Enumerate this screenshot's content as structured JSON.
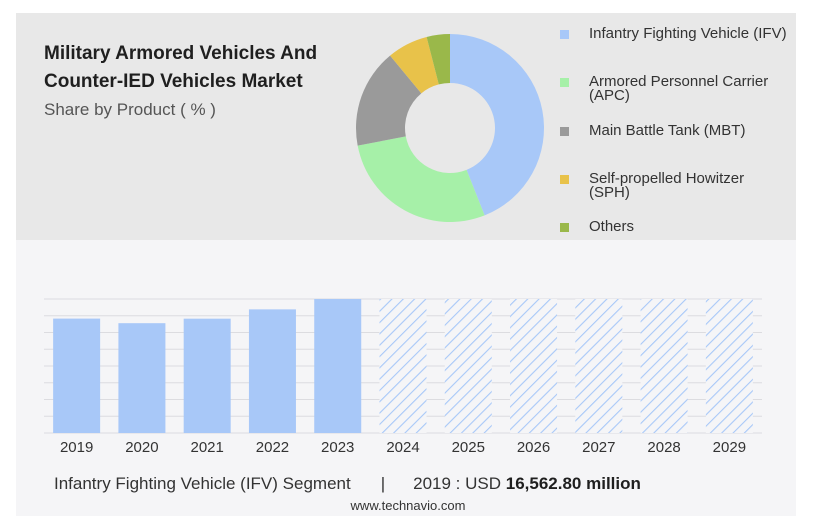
{
  "header": {
    "title": "Military Armored Vehicles And Counter-IED Vehicles Market",
    "subtitle": "Share by Product ( % )"
  },
  "chart_data": [
    {
      "type": "pie",
      "subtype": "donut",
      "title": "Military Armored Vehicles And Counter-IED Vehicles Market",
      "subtitle": "Share by Product ( % )",
      "legend_placement": "right",
      "slices": [
        {
          "label": "Infantry Fighting Vehicle (IFV)",
          "value": 44,
          "color": "#a8c8f8"
        },
        {
          "label": "Armored Personnel Carrier (APC)",
          "value": 28,
          "color": "#a6f0a8"
        },
        {
          "label": "Main Battle Tank (MBT)",
          "value": 17,
          "color": "#9a9a9a"
        },
        {
          "label": "Self-propelled Howitzer (SPH)",
          "value": 7,
          "color": "#e8c24a"
        },
        {
          "label": "Others",
          "value": 4,
          "color": "#9ab84a"
        }
      ]
    },
    {
      "type": "bar",
      "categories": [
        "2019",
        "2020",
        "2021",
        "2022",
        "2023",
        "2024",
        "2025",
        "2026",
        "2027",
        "2028",
        "2029"
      ],
      "values": [
        16562.8,
        15900,
        16550,
        17900,
        19400,
        null,
        null,
        null,
        null,
        null,
        null
      ],
      "forecast_categories": [
        "2024",
        "2025",
        "2026",
        "2027",
        "2028",
        "2029"
      ],
      "forecast_style": "hatched",
      "bar_color": "#a8c8f8",
      "ylim": [
        0,
        19400
      ],
      "grid": true,
      "xlabel": "",
      "ylabel": ""
    }
  ],
  "footer": {
    "segment": "Infantry Fighting Vehicle (IFV) Segment",
    "separator": "|",
    "year_label": "2019 : USD",
    "value": "16,562.80 million"
  },
  "source": "www.technavio.com"
}
